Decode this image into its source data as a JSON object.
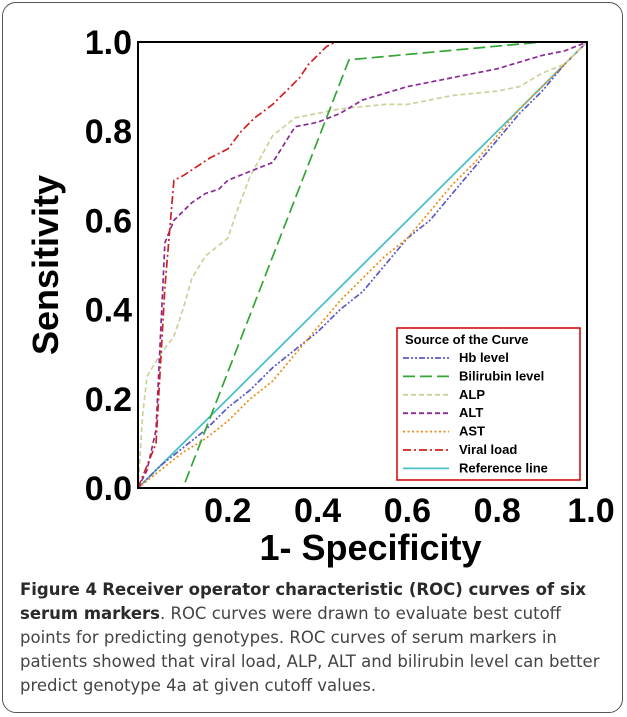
{
  "figure": {
    "label": "Figure 4",
    "title": "Receiver operator characteristic (ROC) curves of six serum markers",
    "caption_text": "ROC curves were drawn to evaluate best cutoff points for predicting genotypes. ROC curves of serum markers in patients showed that viral load, ALP, ALT and bilirubin level can better predict genotype 4a at given cutoff values."
  },
  "chart_data": {
    "type": "line",
    "xlabel": "1- Specificity",
    "ylabel": "Sensitivity",
    "xlim": [
      0,
      1
    ],
    "ylim": [
      0,
      1
    ],
    "x_tick_labels": [
      "0.2",
      "0.4",
      "0.6",
      "0.8",
      "1.0"
    ],
    "x_ticks": [
      0.2,
      0.4,
      0.6,
      0.8,
      1.0
    ],
    "y_tick_labels": [
      "0.0",
      "0.2",
      "0.4",
      "0.6",
      "0.8",
      "1.0"
    ],
    "y_ticks": [
      0.0,
      0.2,
      0.4,
      0.6,
      0.8,
      1.0
    ],
    "grid": false,
    "legend": {
      "title": "Source of the Curve",
      "placement": "bottom-right",
      "border_color": "#d00000"
    },
    "series": [
      {
        "name": "Hb level",
        "color": "#5a5ac8",
        "dash": "dashdotdot",
        "x": [
          0,
          0.05,
          0.1,
          0.15,
          0.2,
          0.25,
          0.3,
          0.35,
          0.4,
          0.45,
          0.5,
          0.55,
          0.6,
          0.65,
          0.7,
          0.75,
          0.8,
          0.85,
          0.9,
          0.95,
          1.0
        ],
        "y": [
          0,
          0.05,
          0.09,
          0.13,
          0.18,
          0.22,
          0.27,
          0.31,
          0.35,
          0.4,
          0.44,
          0.5,
          0.56,
          0.6,
          0.66,
          0.72,
          0.78,
          0.84,
          0.89,
          0.95,
          1.0
        ]
      },
      {
        "name": "Bilirubin level",
        "color": "#33a633",
        "dash": "longdash",
        "x": [
          0,
          0.1,
          0.47,
          0.9,
          1.0
        ],
        "y": [
          0,
          0,
          0.96,
          1.0,
          1.0
        ]
      },
      {
        "name": "ALP",
        "color": "#cfcf9c",
        "dash": "dash",
        "x": [
          0,
          0.01,
          0.02,
          0.05,
          0.08,
          0.1,
          0.12,
          0.15,
          0.2,
          0.22,
          0.25,
          0.3,
          0.35,
          0.4,
          0.45,
          0.55,
          0.6,
          0.7,
          0.8,
          0.85,
          0.9,
          0.95,
          1.0
        ],
        "y": [
          0,
          0.16,
          0.25,
          0.3,
          0.34,
          0.4,
          0.47,
          0.52,
          0.56,
          0.62,
          0.7,
          0.79,
          0.83,
          0.84,
          0.85,
          0.86,
          0.86,
          0.88,
          0.89,
          0.9,
          0.93,
          0.95,
          1.0
        ]
      },
      {
        "name": "ALT",
        "color": "#8a2a96",
        "dash": "dash",
        "x": [
          0,
          0.02,
          0.04,
          0.06,
          0.08,
          0.1,
          0.12,
          0.15,
          0.18,
          0.2,
          0.25,
          0.3,
          0.35,
          0.4,
          0.45,
          0.5,
          0.6,
          0.7,
          0.8,
          0.9,
          0.95,
          1.0
        ],
        "y": [
          0,
          0.04,
          0.13,
          0.55,
          0.6,
          0.62,
          0.64,
          0.66,
          0.67,
          0.69,
          0.71,
          0.73,
          0.81,
          0.82,
          0.84,
          0.87,
          0.9,
          0.92,
          0.94,
          0.97,
          0.98,
          1.0
        ]
      },
      {
        "name": "AST",
        "color": "#f08a10",
        "dash": "dot",
        "x": [
          0,
          0.05,
          0.1,
          0.15,
          0.2,
          0.25,
          0.3,
          0.35,
          0.4,
          0.45,
          0.5,
          0.55,
          0.6,
          0.65,
          0.7,
          0.75,
          0.8,
          0.85,
          0.9,
          0.95,
          1.0
        ],
        "y": [
          0,
          0.04,
          0.08,
          0.11,
          0.15,
          0.2,
          0.24,
          0.3,
          0.36,
          0.42,
          0.47,
          0.52,
          0.56,
          0.62,
          0.68,
          0.73,
          0.79,
          0.85,
          0.9,
          0.95,
          1.0
        ]
      },
      {
        "name": "Viral load",
        "color": "#d02020",
        "dash": "dashdot",
        "x": [
          0,
          0.04,
          0.06,
          0.08,
          0.1,
          0.13,
          0.16,
          0.2,
          0.23,
          0.26,
          0.3,
          0.33,
          0.36,
          0.38,
          0.4,
          0.42,
          0.44
        ],
        "y": [
          0,
          0.1,
          0.45,
          0.69,
          0.7,
          0.72,
          0.74,
          0.76,
          0.8,
          0.83,
          0.86,
          0.89,
          0.92,
          0.95,
          0.97,
          0.99,
          1.0
        ]
      },
      {
        "name": "Reference line",
        "color": "#4cc0c8",
        "dash": "solid",
        "x": [
          0,
          1.0
        ],
        "y": [
          0,
          1.0
        ]
      }
    ]
  }
}
